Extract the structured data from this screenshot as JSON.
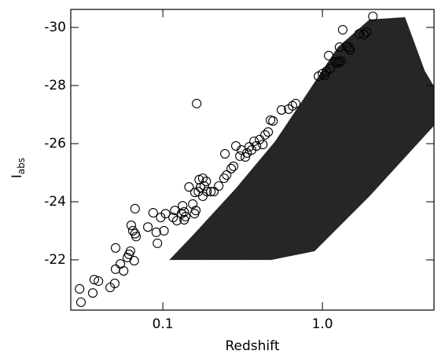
{
  "chart_data": {
    "type": "scatter",
    "x_label": "Redshift",
    "y_label": "I",
    "y_label_sub": "abs",
    "xscale": "log",
    "xlim": [
      0.0265,
      5.0
    ],
    "xticks": [
      0.1,
      {
        "value": 1,
        "label": "1.0"
      }
    ],
    "ylim": [
      -20.27,
      -30.62
    ],
    "yticks": [
      -30,
      -28,
      -26,
      -24,
      -22
    ],
    "series": [
      {
        "kind": "region",
        "color": "#000000",
        "x": [
          0.11,
          0.154,
          0.287,
          0.506,
          0.797,
          1.25,
          1.97,
          3.29,
          4.37,
          5.0,
          5.0,
          1.97,
          0.893,
          0.478
        ],
        "values": [
          -22.0,
          -22.84,
          -24.46,
          -26.08,
          -27.7,
          -29.32,
          -30.27,
          -30.35,
          -28.51,
          -27.97,
          -26.62,
          -24.19,
          -22.3,
          -22.0
        ]
      },
      {
        "kind": "circles",
        "color": "#000000",
        "x": [
          0.0307,
          0.0301,
          0.0364,
          0.0372,
          0.0395,
          0.0468,
          0.05,
          0.0506,
          0.0506,
          0.0542,
          0.0568,
          0.06,
          0.0614,
          0.0627,
          0.0634,
          0.0649,
          0.0662,
          0.067,
          0.068,
          0.067,
          0.0806,
          0.087,
          0.091,
          0.0925,
          0.097,
          0.1017,
          0.104,
          0.116,
          0.119,
          0.1225,
          0.131,
          0.133,
          0.136,
          0.136,
          0.139,
          0.146,
          0.154,
          0.159,
          0.163,
          0.158,
          0.161,
          0.169,
          0.167,
          0.172,
          0.178,
          0.178,
          0.182,
          0.189,
          0.187,
          0.2,
          0.209,
          0.224,
          0.242,
          0.251,
          0.245,
          0.268,
          0.277,
          0.287,
          0.304,
          0.311,
          0.329,
          0.337,
          0.348,
          0.36,
          0.373,
          0.386,
          0.404,
          0.423,
          0.437,
          0.457,
          0.473,
          0.49,
          0.554,
          0.614,
          0.65,
          0.68,
          0.945,
          1.0,
          1.035,
          1.06,
          1.12,
          1.095,
          1.21,
          1.25,
          1.27,
          1.28,
          1.31,
          1.34,
          1.42,
          1.47,
          1.49,
          1.7,
          1.82,
          1.89,
          2.07
        ],
        "values": [
          -20.54,
          -21.0,
          -20.86,
          -21.32,
          -21.27,
          -21.05,
          -21.19,
          -21.68,
          -22.41,
          -21.86,
          -21.62,
          -22.08,
          -22.19,
          -22.3,
          -23.19,
          -23.0,
          -21.97,
          -22.9,
          -22.8,
          -23.76,
          -23.13,
          -23.62,
          -22.95,
          -22.57,
          -23.46,
          -23.0,
          -23.59,
          -23.46,
          -23.7,
          -23.35,
          -23.59,
          -23.86,
          -23.38,
          -23.65,
          -23.49,
          -24.51,
          -23.92,
          -24.32,
          -27.38,
          -23.59,
          -23.7,
          -24.76,
          -24.35,
          -24.49,
          -24.81,
          -24.19,
          -24.54,
          -24.35,
          -24.7,
          -24.35,
          -24.35,
          -24.54,
          -24.81,
          -24.92,
          -25.65,
          -25.14,
          -25.22,
          -25.92,
          -25.57,
          -25.78,
          -25.54,
          -25.68,
          -25.89,
          -25.78,
          -26.08,
          -25.92,
          -26.14,
          -25.97,
          -26.3,
          -26.4,
          -26.81,
          -26.78,
          -27.16,
          -27.19,
          -27.3,
          -27.38,
          -28.32,
          -28.41,
          -28.35,
          -28.49,
          -28.59,
          -29.03,
          -28.81,
          -28.78,
          -28.84,
          -29.32,
          -28.84,
          -29.92,
          -29.35,
          -29.3,
          -29.22,
          -29.78,
          -29.76,
          -29.84,
          -30.38
        ]
      }
    ]
  }
}
